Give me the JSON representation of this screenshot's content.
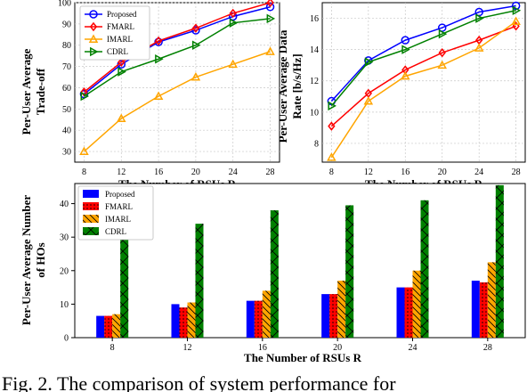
{
  "chart_data": [
    {
      "type": "line",
      "xlabel": "The Number of RSUs R",
      "ylabel": "Per-User Average Trade-off",
      "x": [
        8,
        12,
        16,
        20,
        24,
        28
      ],
      "xticks": [
        "8",
        "12",
        "16",
        "20",
        "24",
        "28"
      ],
      "ylim": [
        25,
        100
      ],
      "yticks": [
        "30",
        "40",
        "50",
        "60",
        "70",
        "80",
        "90",
        "100"
      ],
      "grid": true,
      "legend_position": "top-left",
      "series": [
        {
          "name": "Proposed",
          "color": "#0000ff",
          "marker": "circle",
          "values": [
            57,
            71,
            81.5,
            87,
            93.5,
            98
          ]
        },
        {
          "name": "FMARL",
          "color": "#ff0000",
          "marker": "diamond",
          "values": [
            58,
            72,
            82,
            88,
            95,
            100
          ]
        },
        {
          "name": "IMARL",
          "color": "#ffa500",
          "marker": "triangle-up",
          "values": [
            30,
            45.5,
            56,
            65,
            71,
            77
          ]
        },
        {
          "name": "CDRL",
          "color": "#008000",
          "marker": "triangle-right",
          "values": [
            56,
            67.5,
            73.5,
            80,
            90.5,
            92.5
          ]
        }
      ]
    },
    {
      "type": "line",
      "xlabel": "The Number of RSUs R",
      "ylabel": "Per-User Average Data Rate [b/s/Hz]",
      "x": [
        8,
        12,
        16,
        20,
        24,
        28
      ],
      "xticks": [
        "8",
        "12",
        "16",
        "20",
        "24",
        "28"
      ],
      "ylim": [
        6.8,
        17
      ],
      "yticks": [
        "8",
        "10",
        "12",
        "14",
        "16"
      ],
      "grid": true,
      "series": [
        {
          "name": "Proposed",
          "color": "#0000ff",
          "marker": "circle",
          "values": [
            10.7,
            13.3,
            14.6,
            15.4,
            16.4,
            16.8
          ]
        },
        {
          "name": "FMARL",
          "color": "#ff0000",
          "marker": "diamond",
          "values": [
            9.1,
            11.2,
            12.7,
            13.8,
            14.6,
            15.5
          ]
        },
        {
          "name": "IMARL",
          "color": "#ffa500",
          "marker": "triangle-up",
          "values": [
            7.1,
            10.7,
            12.3,
            13.0,
            14.1,
            15.8
          ]
        },
        {
          "name": "CDRL",
          "color": "#008000",
          "marker": "triangle-right",
          "values": [
            10.4,
            13.2,
            14.0,
            15.0,
            16.0,
            16.5
          ]
        }
      ]
    },
    {
      "type": "bar",
      "xlabel": "The Number of RSUs R",
      "ylabel": "Per-User Average Number of HOs",
      "categories": [
        "8",
        "12",
        "16",
        "20",
        "24",
        "28"
      ],
      "ylim": [
        0,
        46
      ],
      "yticks": [
        "0",
        "10",
        "20",
        "30",
        "40"
      ],
      "grid": false,
      "legend_position": "top-left",
      "series": [
        {
          "name": "Proposed",
          "color": "#0000ff",
          "hatch": "none",
          "values": [
            6.5,
            10,
            11,
            13,
            15,
            17
          ]
        },
        {
          "name": "FMARL",
          "color": "#ff0000",
          "hatch": "dots",
          "values": [
            6.5,
            9,
            11,
            13,
            15,
            16.5
          ]
        },
        {
          "name": "IMARL",
          "color": "#ffa500",
          "hatch": "backslash",
          "values": [
            7,
            10.5,
            14,
            17,
            20,
            22.5
          ]
        },
        {
          "name": "CDRL",
          "color": "#008000",
          "hatch": "cross",
          "values": [
            30,
            34,
            38,
            39.5,
            41,
            45.5
          ]
        }
      ]
    }
  ],
  "caption": {
    "text": "Fig. 2. The comparison of system performance for"
  }
}
